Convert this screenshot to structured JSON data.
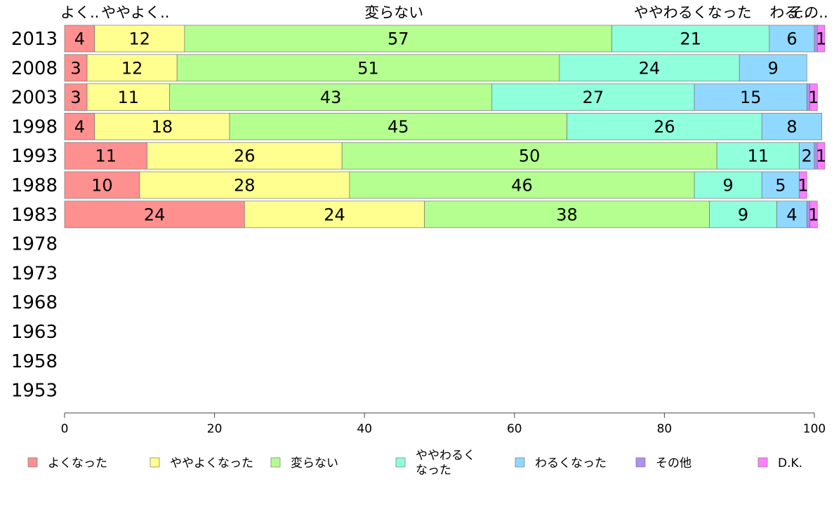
{
  "chart_data": {
    "type": "bar",
    "orientation": "horizontal",
    "stacked": true,
    "categories": [
      "2013",
      "2008",
      "2003",
      "1998",
      "1993",
      "1988",
      "1983",
      "1978",
      "1973",
      "1968",
      "1963",
      "1958",
      "1953"
    ],
    "series": [
      {
        "name": "よくなった",
        "color": "#ff9090",
        "values": [
          4,
          3,
          3,
          4,
          11,
          10,
          24,
          null,
          null,
          null,
          null,
          null,
          null
        ]
      },
      {
        "name": "ややよくなった",
        "color": "#ffff90",
        "values": [
          12,
          12,
          11,
          18,
          26,
          28,
          24,
          null,
          null,
          null,
          null,
          null,
          null
        ]
      },
      {
        "name": "変らない",
        "color": "#b4ff90",
        "values": [
          57,
          51,
          43,
          45,
          50,
          46,
          38,
          null,
          null,
          null,
          null,
          null,
          null
        ]
      },
      {
        "name": "ややわるくなった",
        "color": "#90ffdc",
        "values": [
          21,
          24,
          27,
          26,
          11,
          9,
          9,
          null,
          null,
          null,
          null,
          null,
          null
        ]
      },
      {
        "name": "わるくなった",
        "color": "#90d8ff",
        "values": [
          6,
          9,
          15,
          8,
          2,
          5,
          4,
          null,
          null,
          null,
          null,
          null,
          null
        ]
      },
      {
        "name": "その他",
        "color": "#b090f0",
        "values": [
          0.4,
          0,
          0.4,
          0,
          0.4,
          0,
          0.4,
          null,
          null,
          null,
          null,
          null,
          null
        ]
      },
      {
        "name": "D.K.",
        "color": "#ff80ff",
        "values": [
          1,
          0,
          1,
          0,
          1,
          1,
          1,
          null,
          null,
          null,
          null,
          null,
          null
        ]
      }
    ],
    "data_labels": [
      [
        "4",
        "12",
        "57",
        "21",
        "6",
        "",
        "1"
      ],
      [
        "3",
        "12",
        "51",
        "24",
        "9",
        "",
        ""
      ],
      [
        "3",
        "11",
        "43",
        "27",
        "15",
        "",
        "1"
      ],
      [
        "4",
        "18",
        "45",
        "26",
        "8",
        "",
        ""
      ],
      [
        "11",
        "26",
        "50",
        "11",
        "2",
        "",
        "1"
      ],
      [
        "10",
        "28",
        "46",
        "9",
        "5",
        "",
        "1"
      ],
      [
        "24",
        "24",
        "38",
        "9",
        "4",
        "",
        "1"
      ]
    ],
    "top_labels": [
      "よく..",
      "ややよく..",
      "変らない",
      "ややわるくなった",
      "わる..",
      "その.."
    ],
    "xlim": [
      0,
      100
    ],
    "xticks": [
      0,
      20,
      40,
      60,
      80,
      100
    ],
    "legend": {
      "placement": "bottom",
      "entries": [
        {
          "label": "よくなった",
          "color": "#ff9090"
        },
        {
          "label": "ややよくなった",
          "color": "#ffff90"
        },
        {
          "label": "変らない",
          "color": "#b4ff90"
        },
        {
          "label_lines": [
            "ややわるく",
            "なった"
          ],
          "color": "#90ffdc"
        },
        {
          "label": "わるくなった",
          "color": "#90d8ff"
        },
        {
          "label": "その他",
          "color": "#b090f0"
        },
        {
          "label": "D.K.",
          "color": "#ff80ff"
        }
      ]
    },
    "grid": false
  }
}
